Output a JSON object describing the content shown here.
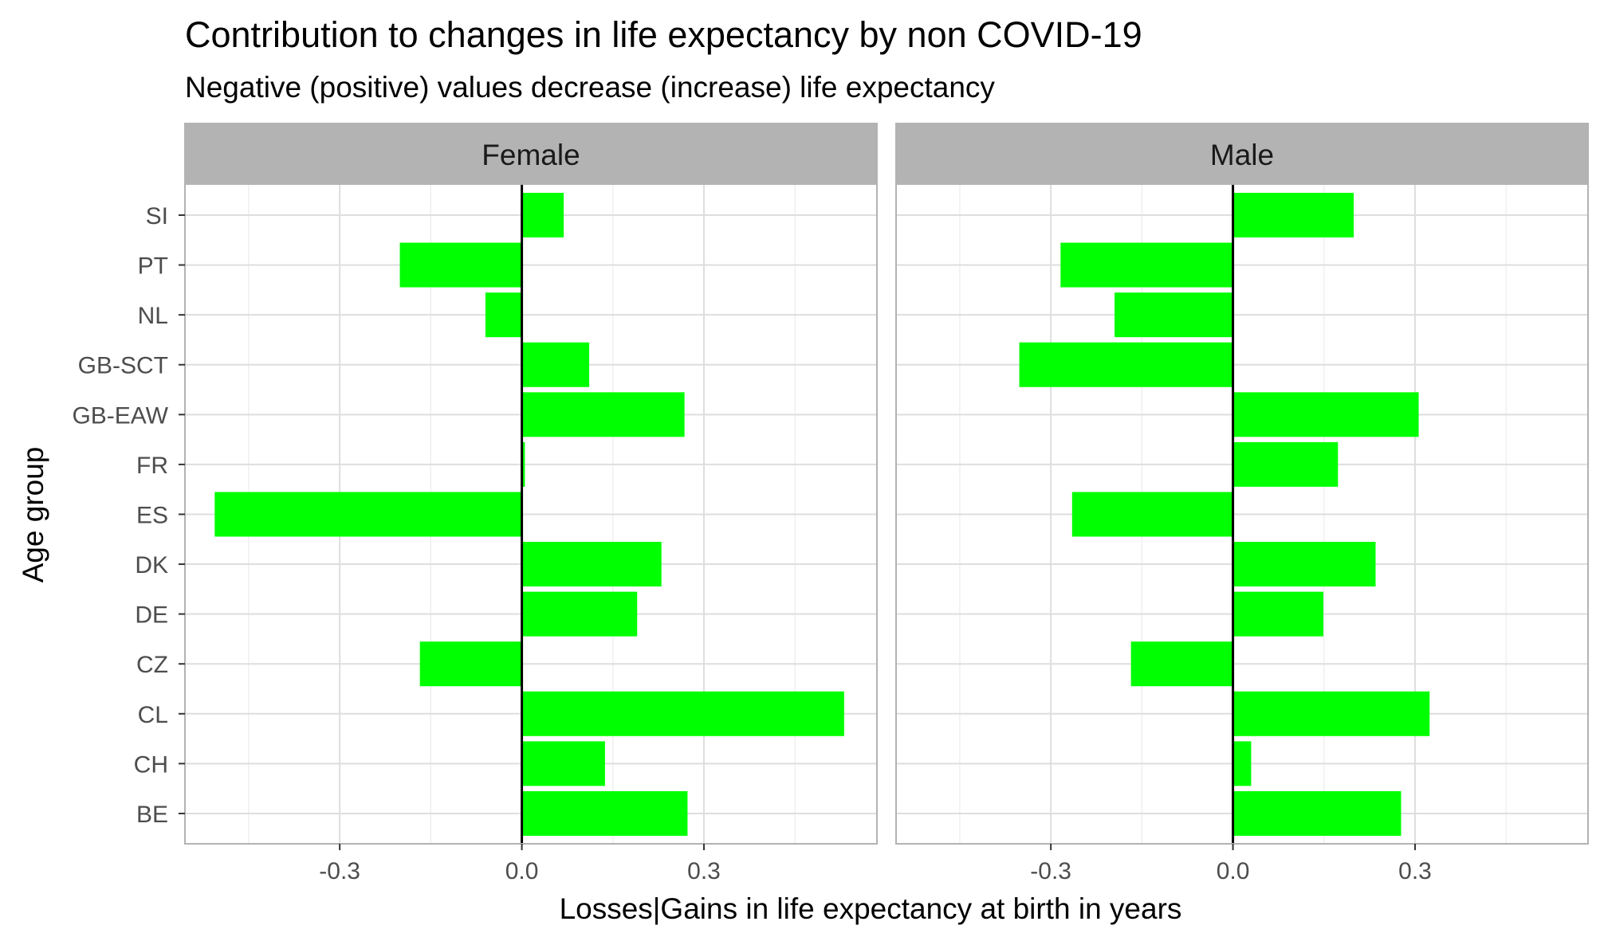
{
  "chart_data": {
    "type": "bar",
    "orientation": "horizontal",
    "title": "Contribution to changes in life expectancy by non COVID-19",
    "subtitle": "Negative (positive) values decrease (increase) life expectancy",
    "xlabel": "Losses|Gains in life expectancy at birth in years",
    "ylabel": "Age group",
    "categories": [
      "BE",
      "CH",
      "CL",
      "CZ",
      "DE",
      "DK",
      "ES",
      "FR",
      "GB-EAW",
      "GB-SCT",
      "NL",
      "PT",
      "SI"
    ],
    "xlim": [
      -0.555,
      0.585
    ],
    "x_ticks": [
      -0.3,
      0.0,
      0.3
    ],
    "x_tick_labels": [
      "-0.3",
      "0.0",
      "0.3"
    ],
    "grid": true,
    "bar_color": "#00ff00",
    "facets": [
      {
        "name": "Female",
        "values": [
          0.273,
          0.137,
          0.531,
          -0.168,
          0.19,
          0.23,
          -0.506,
          0.005,
          0.268,
          0.111,
          -0.06,
          -0.201,
          0.069
        ]
      },
      {
        "name": "Male",
        "values": [
          0.277,
          0.03,
          0.324,
          -0.168,
          0.149,
          0.235,
          -0.265,
          0.173,
          0.306,
          -0.352,
          -0.195,
          -0.284,
          0.199
        ]
      }
    ]
  },
  "colors": {
    "strip_background": "#b3b3b3",
    "panel_border": "#b3b3b3",
    "grid": "#dedede",
    "zero_line": "#000000",
    "bar": "#00ff00"
  }
}
